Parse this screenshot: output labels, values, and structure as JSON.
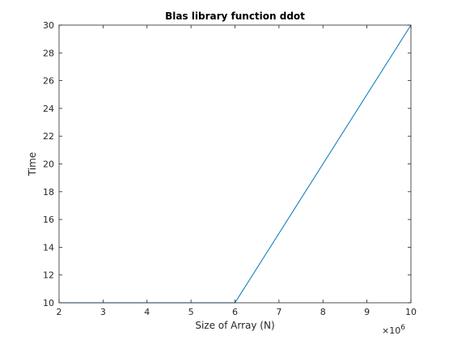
{
  "chart_data": {
    "type": "line",
    "title": "Blas library function ddot",
    "xlabel": "Size of Array (N)",
    "ylabel": "Time",
    "x_multiplier_base": "×10",
    "x_multiplier_exponent": "6",
    "xlim": [
      2,
      10
    ],
    "ylim": [
      10,
      30
    ],
    "x_ticks": [
      2,
      3,
      4,
      5,
      6,
      7,
      8,
      9,
      10
    ],
    "y_ticks": [
      10,
      12,
      14,
      16,
      18,
      20,
      22,
      24,
      26,
      28,
      30
    ],
    "grid": false,
    "series": [
      {
        "color": "#0072bd",
        "x": [
          2,
          3,
          4,
          5,
          6,
          7,
          8,
          9,
          10
        ],
        "y": [
          10,
          10,
          10,
          10,
          10,
          15,
          20,
          25,
          30
        ]
      }
    ]
  }
}
